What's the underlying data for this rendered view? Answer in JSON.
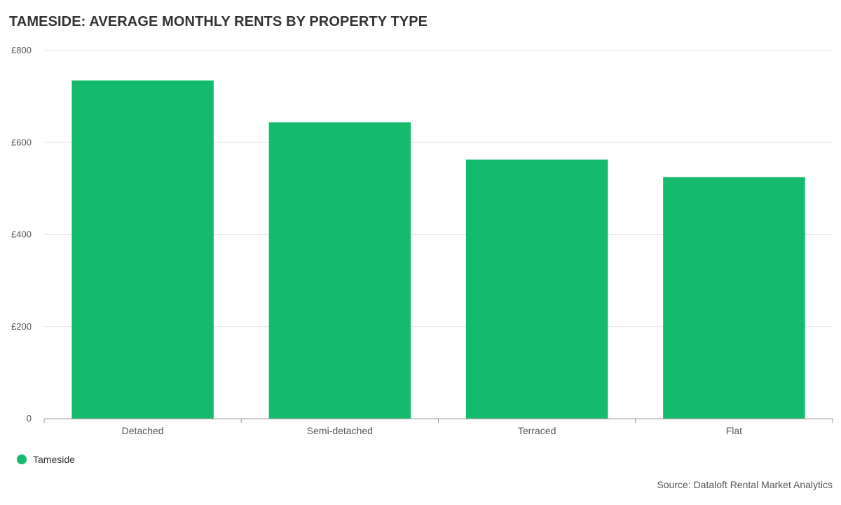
{
  "colors": {
    "bar": "#14bb6c",
    "grid": "#e6e6e6",
    "axis": "#999999",
    "text": "#555555"
  },
  "legend": {
    "label": "Tameside"
  },
  "source": "Source: Dataloft Rental Market Analytics",
  "chart_data": {
    "type": "bar",
    "title": "TAMESIDE: AVERAGE MONTHLY RENTS BY PROPERTY TYPE",
    "categories": [
      "Detached",
      "Semi-detached",
      "Terraced",
      "Flat"
    ],
    "series": [
      {
        "name": "Tameside",
        "values": [
          735,
          644,
          563,
          525
        ]
      }
    ],
    "ylim": [
      0,
      800
    ],
    "yticks": [
      0,
      200,
      400,
      600,
      800
    ],
    "ytick_labels": [
      "0",
      "£200",
      "£400",
      "£600",
      "£800"
    ],
    "grid": true,
    "legend_position": "bottom-left"
  }
}
